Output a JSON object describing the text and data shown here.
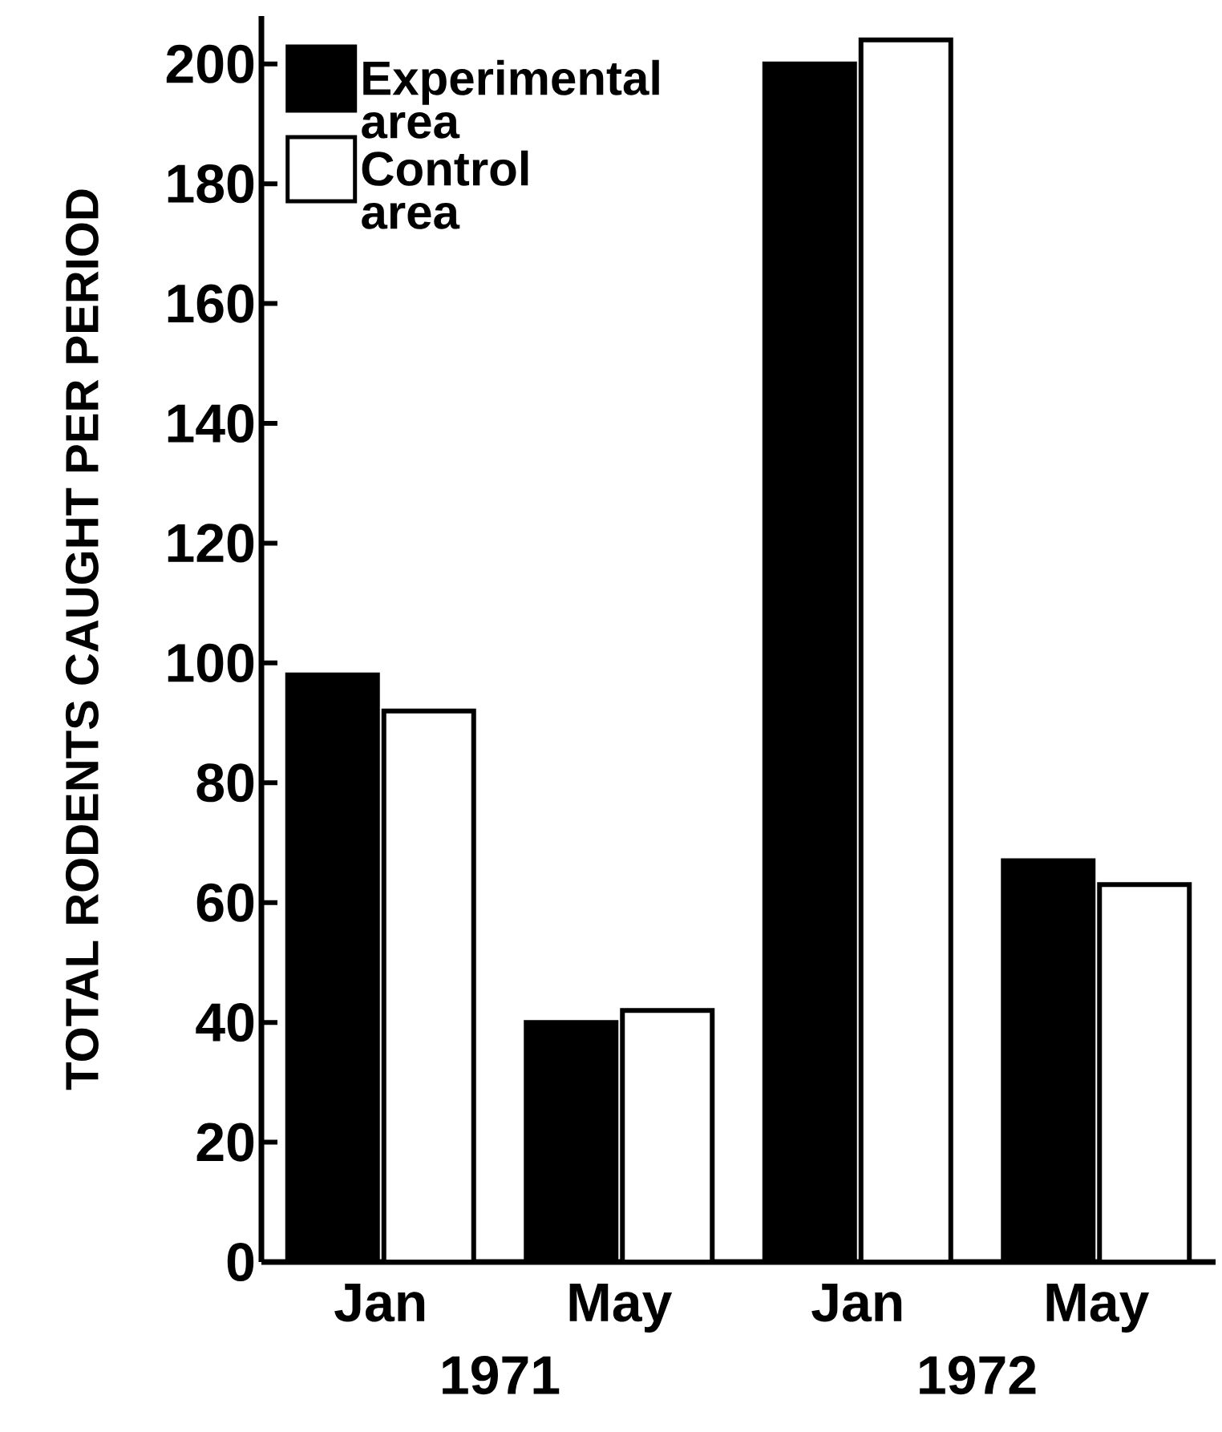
{
  "chart_data": {
    "type": "bar",
    "ylabel": "TOTAL RODENTS CAUGHT PER PERIOD",
    "categories": [
      "Jan",
      "May",
      "Jan",
      "May"
    ],
    "series": [
      {
        "name": "Experimental area",
        "color": "#000000",
        "values": [
          98,
          40,
          200,
          67
        ]
      },
      {
        "name": "Control area",
        "color": "#ffffff",
        "values": [
          92,
          42,
          204,
          63
        ]
      }
    ],
    "annotations": [
      "1971",
      "1972"
    ],
    "ylim": [
      0,
      208
    ],
    "yticks": [
      0,
      20,
      40,
      60,
      80,
      100,
      120,
      140,
      160,
      180,
      200
    ],
    "grid": false,
    "legend": "top left"
  }
}
